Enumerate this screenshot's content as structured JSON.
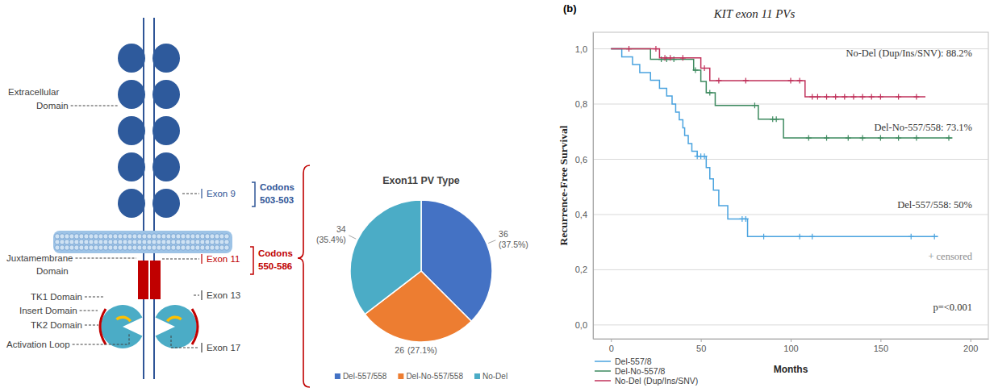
{
  "chart_data": [
    {
      "type": "pie",
      "title": "Exon11 PV Type",
      "categories": [
        "Del-557/558",
        "Del-No-557/558",
        "No-Del"
      ],
      "values": [
        36,
        26,
        34
      ],
      "percent_labels": [
        "(37.5%)",
        "(27.1%)",
        "(35.4%)"
      ],
      "colors": [
        "#4472c4",
        "#ed7d31",
        "#4bacc6"
      ],
      "data_labels": true,
      "legend": "bottom"
    },
    {
      "type": "line",
      "title": "KIT exon 11 PVs",
      "panel_label": "(b)",
      "x_label": "Months",
      "y_label": "Recurrence-Free Survival",
      "xlim": [
        -10,
        210
      ],
      "ylim": [
        -0.05,
        1.06
      ],
      "xticks": [
        0,
        50,
        100,
        150,
        200
      ],
      "yticks": [
        {
          "value": 0,
          "label": "0,0"
        },
        {
          "value": 0.2,
          "label": "0,2"
        },
        {
          "value": 0.4,
          "label": "0,4"
        },
        {
          "value": 0.6,
          "label": "0,6"
        },
        {
          "value": 0.8,
          "label": "0,8"
        },
        {
          "value": 1,
          "label": "1,0"
        }
      ],
      "grid": true,
      "line_style": "step",
      "marker": "plus",
      "legend": "bottom-left",
      "annotations": [
        "No-Del (Dup/Ins/SNV): 88.2%",
        "Del-No-557/558: 73.1%",
        "Del-557/558: 50%",
        "+ censored",
        "p=<0.001"
      ],
      "series": [
        {
          "name": "Del-557/8",
          "color": "#4aa3df",
          "x": [
            0,
            6,
            12,
            16,
            22,
            27,
            31,
            34,
            36,
            38,
            40,
            41,
            43,
            45,
            48,
            53,
            55,
            57,
            60,
            65,
            76,
            182
          ],
          "values": [
            1,
            0.971,
            0.943,
            0.914,
            0.886,
            0.857,
            0.829,
            0.8,
            0.771,
            0.743,
            0.714,
            0.686,
            0.657,
            0.629,
            0.611,
            0.57,
            0.529,
            0.488,
            0.432,
            0.384,
            0.32,
            0.32
          ],
          "censored_x": [
            48,
            50,
            52,
            73,
            75,
            85,
            105,
            112,
            167,
            180
          ],
          "censored_values": [
            0.611,
            0.611,
            0.611,
            0.384,
            0.384,
            0.32,
            0.32,
            0.32,
            0.32,
            0.32
          ]
        },
        {
          "name": "Del-No-557/8",
          "color": "#3d8a5f",
          "x": [
            0,
            22,
            46,
            50,
            53,
            58,
            82,
            96,
            190
          ],
          "values": [
            1,
            0.962,
            0.923,
            0.882,
            0.841,
            0.795,
            0.745,
            0.677,
            0.677
          ],
          "censored_x": [
            28,
            31,
            35,
            47,
            55,
            80,
            90,
            92,
            110,
            120,
            132,
            140,
            150,
            160,
            170,
            188
          ],
          "censored_values": [
            0.962,
            0.962,
            0.962,
            0.923,
            0.841,
            0.795,
            0.745,
            0.745,
            0.677,
            0.677,
            0.677,
            0.677,
            0.677,
            0.677,
            0.677,
            0.677
          ]
        },
        {
          "name": "No-Del (Dup/Ins/SNV)",
          "color": "#c0305a",
          "x": [
            0,
            27,
            50,
            55,
            108,
            175
          ],
          "values": [
            1,
            0.967,
            0.93,
            0.885,
            0.826,
            0.826
          ],
          "censored_x": [
            10,
            25,
            30,
            33,
            40,
            52,
            60,
            75,
            100,
            105,
            112,
            115,
            120,
            125,
            130,
            135,
            140,
            145,
            150,
            160,
            170
          ],
          "censored_values": [
            1,
            1,
            0.967,
            0.967,
            0.967,
            0.93,
            0.885,
            0.885,
            0.885,
            0.885,
            0.826,
            0.826,
            0.826,
            0.826,
            0.826,
            0.826,
            0.826,
            0.826,
            0.826,
            0.826,
            0.826
          ]
        }
      ]
    }
  ],
  "diagram": {
    "extracellular": [
      "Extracellular",
      "Domain"
    ],
    "exon9": "Exon 9",
    "codons9": [
      "Codons",
      "503-503"
    ],
    "juxtamembrane": [
      "Juxtamembrane",
      "Domain"
    ],
    "exon11": "Exon 11",
    "codons11": [
      "Codons",
      "550-586"
    ],
    "tk1": "TK1 Domain",
    "insert": "Insert Domain",
    "tk2": "TK2 Domain",
    "activation": "Activation Loop",
    "exon13": "Exon 13",
    "exon17": "Exon 17"
  }
}
